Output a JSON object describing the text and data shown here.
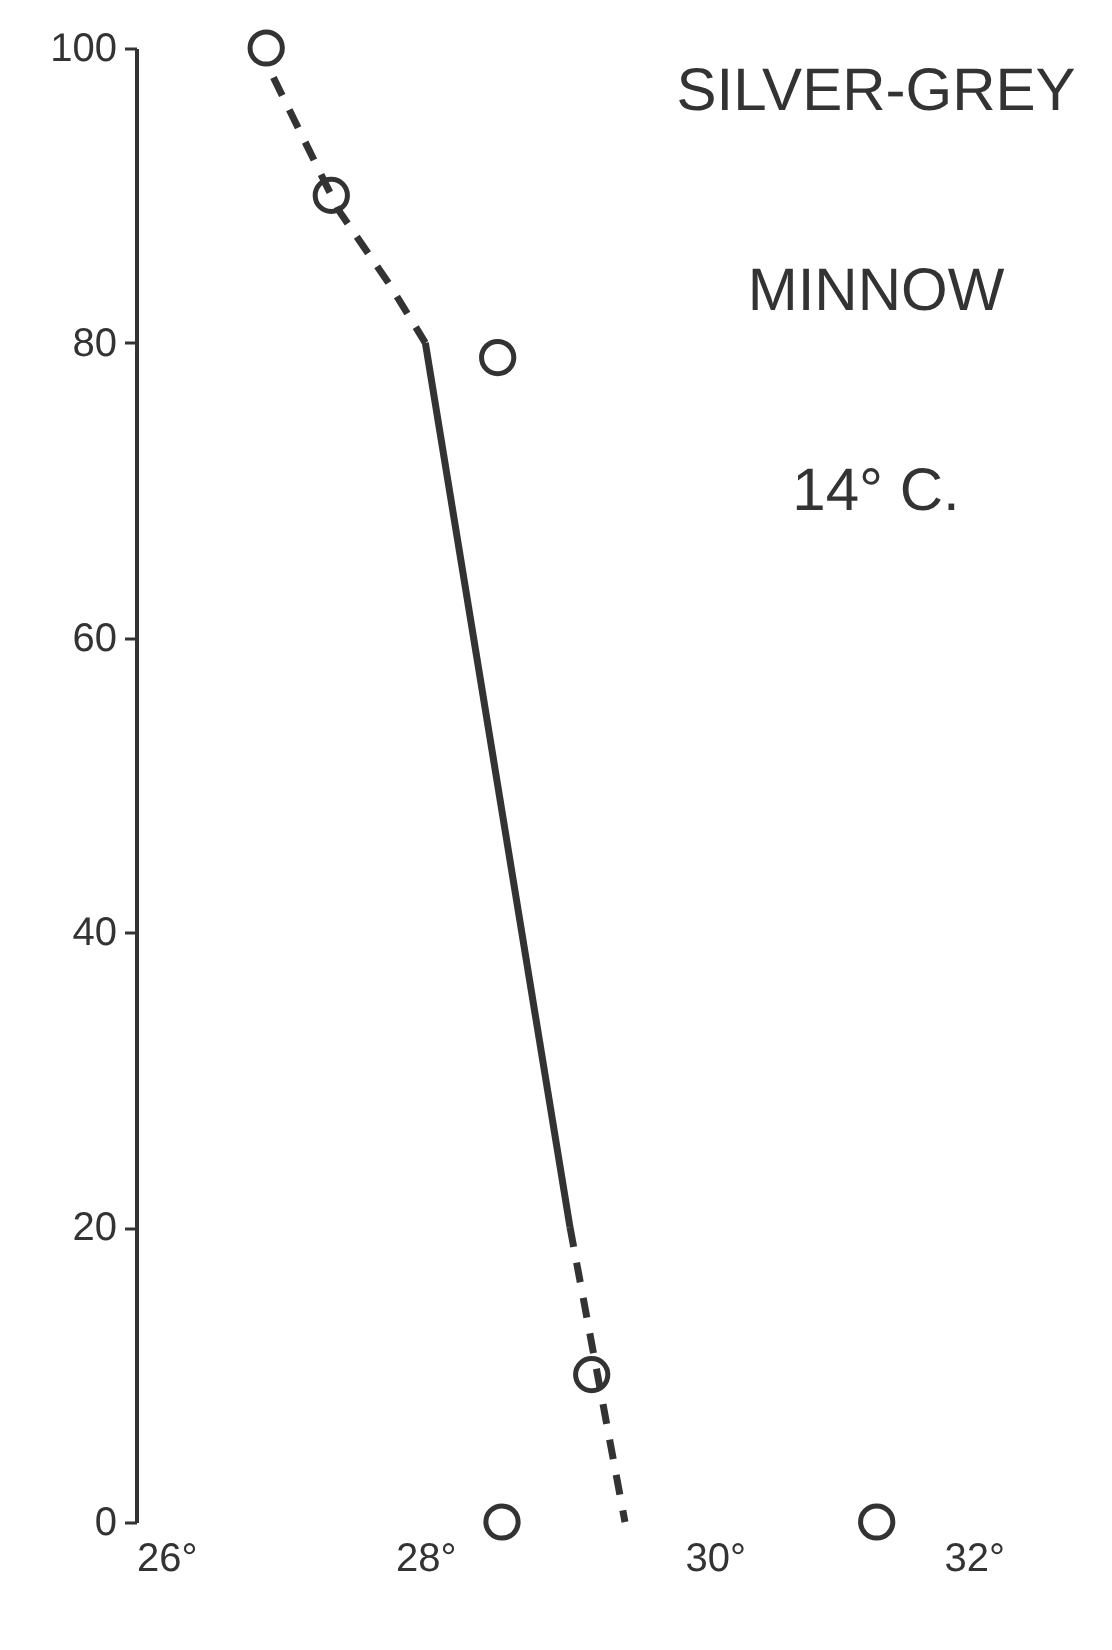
{
  "chart_data": {
    "type": "scatter",
    "annotations": [
      "SILVER-GREY",
      "MINNOW",
      "14° C."
    ],
    "xlim": [
      26,
      32
    ],
    "xticks": [
      {
        "value": 26,
        "label": "26°"
      },
      {
        "value": 28,
        "label": "28°"
      },
      {
        "value": 30,
        "label": "30°"
      },
      {
        "value": 32,
        "label": "32°"
      }
    ],
    "ylim": [
      0,
      100
    ],
    "yticks": [
      0,
      20,
      40,
      60,
      80,
      100
    ],
    "grid": false,
    "series": [
      {
        "color": "#333333",
        "marker": "circle",
        "x": [
          26.9,
          27.35,
          28.5,
          29.15,
          28.53,
          31.12
        ],
        "values": [
          100,
          90,
          79,
          10,
          0,
          0
        ]
      },
      {
        "type": "line",
        "color": "#333333",
        "line_style": "dashed",
        "marker": "none",
        "x": [
          26.95,
          27.4,
          27.75,
          28.0
        ],
        "values": [
          98,
          89,
          84,
          80
        ]
      },
      {
        "type": "line",
        "color": "#333333",
        "line_style": "solid",
        "marker": "none",
        "x": [
          28.0,
          29.0
        ],
        "values": [
          80,
          20
        ]
      },
      {
        "type": "line",
        "color": "#333333",
        "line_style": "dashed",
        "marker": "none",
        "x": [
          29.0,
          29.38
        ],
        "values": [
          20,
          0
        ]
      }
    ]
  }
}
